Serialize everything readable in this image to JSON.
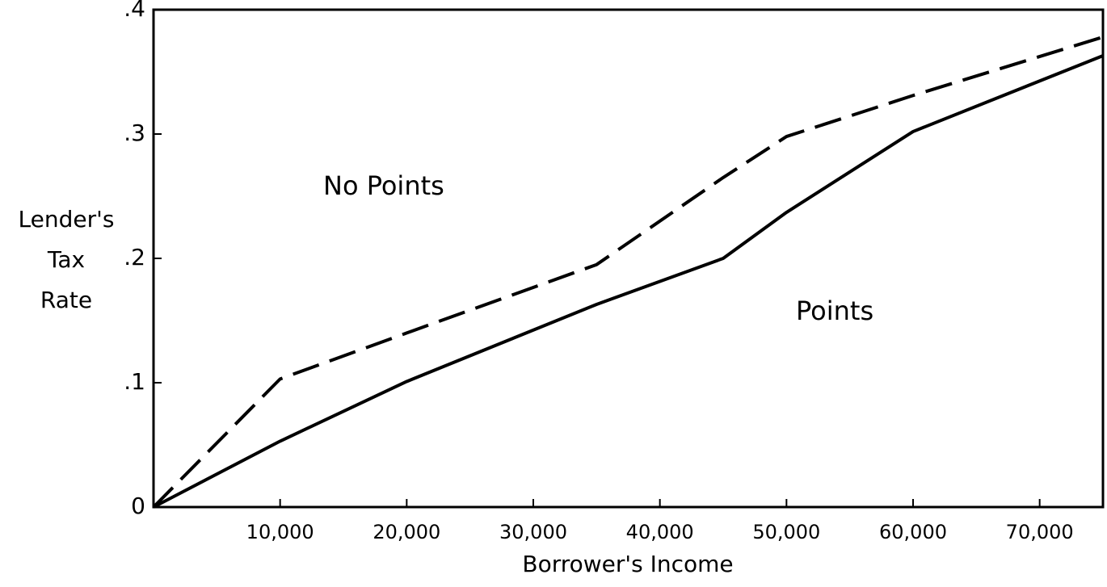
{
  "chart_data": {
    "type": "line",
    "x_label": "Borrower's Income",
    "y_label": [
      "Lender's",
      "Tax",
      "Rate"
    ],
    "annotations": [
      "No Points",
      "Points"
    ],
    "x": [
      0,
      10000,
      20000,
      35000,
      45000,
      50000,
      60000,
      75000
    ],
    "series": [
      {
        "color": "#000000",
        "style": "dashed",
        "values": [
          0,
          0.103,
          0.14,
          0.195,
          0.265,
          0.298,
          0.331,
          0.378
        ]
      },
      {
        "color": "#000000",
        "style": "solid",
        "values": [
          0,
          0.053,
          0.101,
          0.163,
          0.2,
          0.237,
          0.302,
          0.363
        ]
      }
    ],
    "xlim": [
      0,
      75000
    ],
    "xticks": [
      {
        "value": 10000,
        "label": "10,000"
      },
      {
        "value": 20000,
        "label": "20,000"
      },
      {
        "value": 30000,
        "label": "30,000"
      },
      {
        "value": 40000,
        "label": "40,000"
      },
      {
        "value": 50000,
        "label": "50,000"
      },
      {
        "value": 60000,
        "label": "60,000"
      },
      {
        "value": 70000,
        "label": "70,000"
      }
    ],
    "ylim": [
      0,
      0.4
    ],
    "yticks": [
      0,
      {
        "value": 0.1,
        "label": ".1"
      },
      {
        "value": 0.2,
        "label": ".2"
      },
      {
        "value": 0.3,
        "label": ".3"
      },
      {
        "value": 0.4,
        "label": ".4"
      }
    ],
    "grid": false
  }
}
